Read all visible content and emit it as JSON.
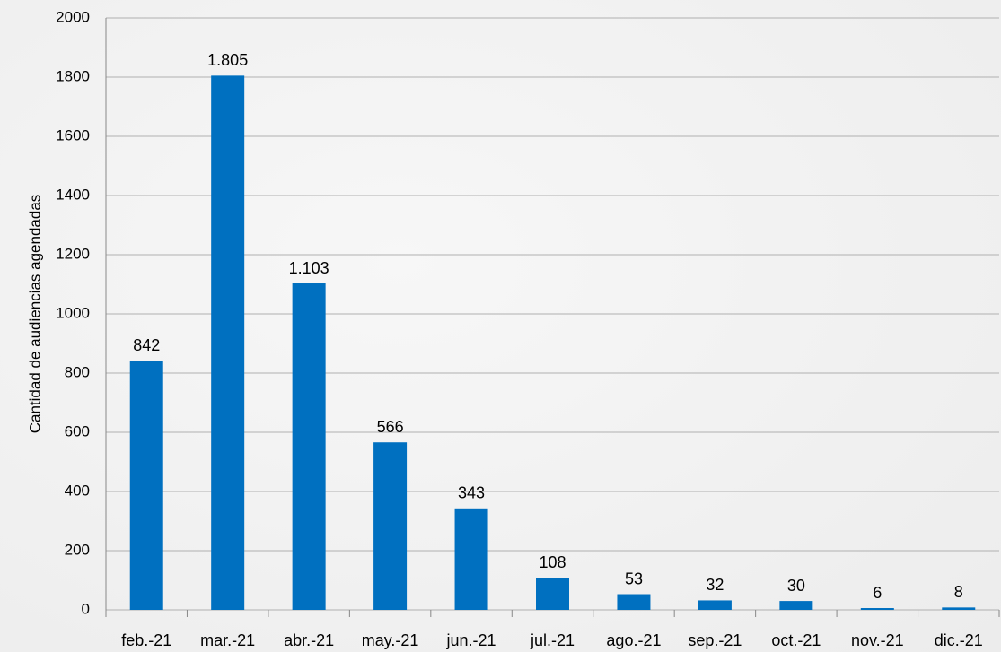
{
  "chart_data": {
    "type": "bar",
    "y_label": "Cantidad de audiencias agendadas",
    "categories": [
      "feb.-21",
      "mar.-21",
      "abr.-21",
      "may.-21",
      "jun.-21",
      "jul.-21",
      "ago.-21",
      "sep.-21",
      "oct.-21",
      "nov.-21",
      "dic.-21"
    ],
    "values": [
      842,
      1805,
      1103,
      566,
      343,
      108,
      53,
      32,
      30,
      6,
      8
    ],
    "value_labels": [
      "842",
      "1.805",
      "1.103",
      "566",
      "343",
      "108",
      "53",
      "32",
      "30",
      "6",
      "8"
    ],
    "color": "#0070c0",
    "ylim": [
      0,
      2000
    ],
    "yticks": [
      0,
      200,
      400,
      600,
      800,
      1000,
      1200,
      1400,
      1600,
      1800,
      2000
    ],
    "grid": true
  }
}
